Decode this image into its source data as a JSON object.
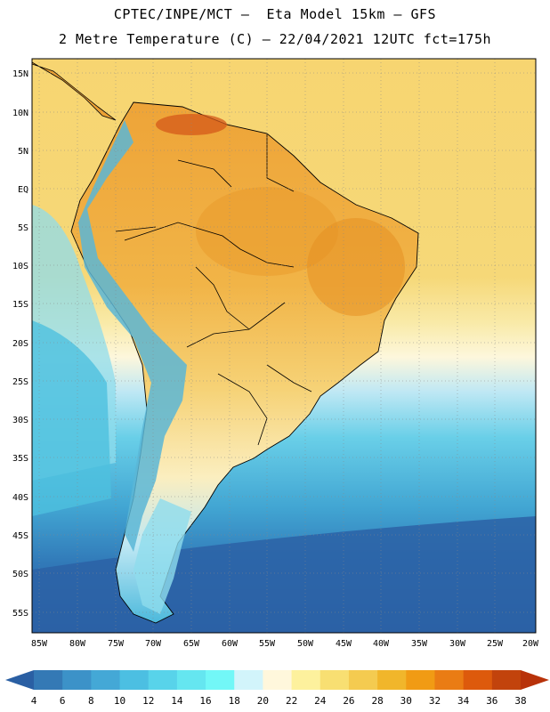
{
  "header": {
    "line1": "CPTEC/INPE/MCT –  Eta Model 15km – GFS",
    "line2": "2 Metre Temperature (C) – 22/04/2021 12UTC fct=175h"
  },
  "axes": {
    "lat_labels": [
      "15N",
      "10N",
      "5N",
      "EQ",
      "5S",
      "10S",
      "15S",
      "20S",
      "25S",
      "30S",
      "35S",
      "40S",
      "45S",
      "50S",
      "55S"
    ],
    "lon_labels": [
      "85W",
      "80W",
      "75W",
      "70W",
      "65W",
      "60W",
      "55W",
      "50W",
      "45W",
      "40W",
      "35W",
      "30W",
      "25W",
      "20W"
    ]
  },
  "colorbar": {
    "ticks": [
      "4",
      "6",
      "8",
      "10",
      "12",
      "14",
      "16",
      "18",
      "20",
      "22",
      "24",
      "26",
      "28",
      "30",
      "32",
      "34",
      "36",
      "38"
    ],
    "colors": [
      "#2a5fa3",
      "#3479b5",
      "#3c92c8",
      "#44a8d6",
      "#4cbfe2",
      "#58d3ea",
      "#65e6f0",
      "#72f7f7",
      "#d2f4fb",
      "#fff7dc",
      "#fdf19d",
      "#f8df72",
      "#f4cb50",
      "#f1b62b",
      "#f19b14",
      "#ea7c14",
      "#dd5a0c",
      "#c2430c",
      "#b8320a"
    ]
  },
  "palette": {
    "deep_ocean": "#2e5f9f",
    "cold": "#4eb8d8",
    "cool": "#7bd6e8",
    "warm_land": "#f7c95b",
    "hot_land": "#eda133",
    "ocean_warm": "#f5d779",
    "frame": "#000000"
  }
}
